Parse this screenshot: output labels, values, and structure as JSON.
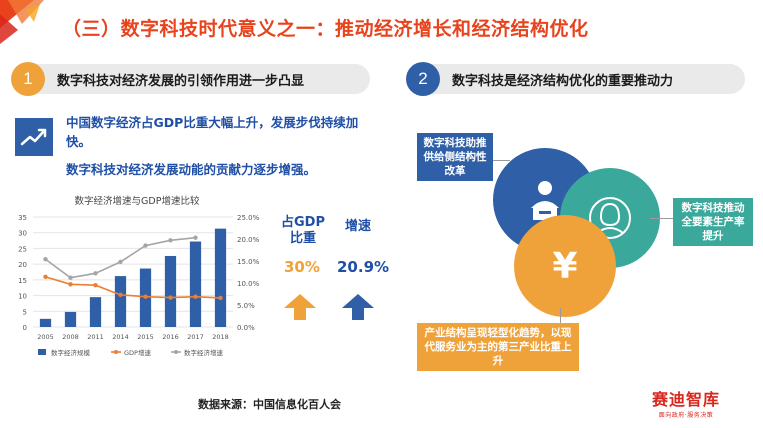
{
  "title": "（三）数字科技时代意义之一：推动经济增长和经济结构优化",
  "section_left": {
    "number": "1",
    "heading": "数字科技对经济发展的引领作用进一步凸显",
    "points": [
      "中国数字经济占GDP比重大幅上升，发展步伐持续加快。",
      "数字科技对经济发展动能的贡献力逐步增强。"
    ],
    "icon": "trend-up-icon"
  },
  "section_right": {
    "number": "2",
    "heading": "数字科技是经济结构优化的重要推动力",
    "callouts": [
      "数字科技助推供给侧结构性改革",
      "数字科技推动全要素生产率提升",
      "产业结构呈现轻型化趋势，以现代服务业为主的第三产业比重上升"
    ],
    "circle_icons": [
      "person-presenter-icon",
      "woman-avatar-icon",
      "yen-icon"
    ]
  },
  "kpis": [
    {
      "label": "占GDP比重",
      "value": "30%"
    },
    {
      "label": "增速",
      "value": "20.9%"
    }
  ],
  "source": "数据来源：中国信息化百人会",
  "logo": {
    "name": "赛迪智库",
    "tagline": "面向政府·服务决策"
  },
  "colors": {
    "accent_red": "#e8431c",
    "blue": "#2f5fa7",
    "orange": "#f0a23a",
    "teal": "#3aa89a",
    "gray_line": "#a0a0a0"
  },
  "chart_data": {
    "type": "bar",
    "title": "数字经济增速与GDP增速比较",
    "categories": [
      "2005",
      "2008",
      "2011",
      "2014",
      "2015",
      "2016",
      "2017",
      "2018"
    ],
    "series": [
      {
        "name": "数字经济规模",
        "type": "bar",
        "axis": "left",
        "values": [
          2.6,
          4.8,
          9.5,
          16.2,
          18.6,
          22.6,
          27.2,
          31.3
        ]
      },
      {
        "name": "GDP增速",
        "type": "line",
        "axis": "right",
        "values": [
          11.4,
          9.7,
          9.5,
          7.3,
          6.9,
          6.7,
          6.9,
          6.6
        ]
      },
      {
        "name": "数字经济增速",
        "type": "line",
        "axis": "right",
        "values": [
          15.4,
          11.2,
          12.2,
          14.8,
          18.5,
          19.7,
          20.3,
          null
        ]
      }
    ],
    "ylim_left": [
      0,
      35
    ],
    "yticks_left": [
      "0",
      "5",
      "10",
      "15",
      "20",
      "25",
      "30",
      "35"
    ],
    "ylim_right": [
      0,
      25
    ],
    "yticks_right": [
      "0.0%",
      "5.0%",
      "10.0%",
      "15.0%",
      "20.0%",
      "25.0%"
    ],
    "legend_placement": "bottom",
    "grid": true
  }
}
